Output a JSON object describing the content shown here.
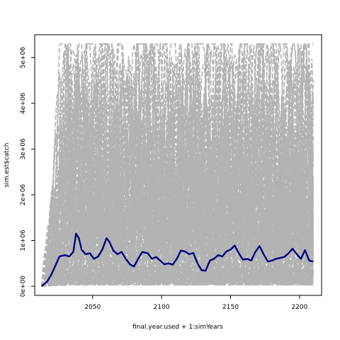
{
  "chart_data": {
    "type": "line",
    "title": "",
    "xlabel": "final.year.used + 1:simYears",
    "ylabel": "sim.est$catch",
    "xlim": [
      2008,
      2216
    ],
    "ylim": [
      -200000,
      5500000
    ],
    "x_ticks": [
      2050,
      2100,
      2150,
      2200
    ],
    "x_tick_labels": [
      "2050",
      "2100",
      "2150",
      "2200"
    ],
    "y_ticks": [
      0,
      1000000,
      2000000,
      3000000,
      4000000,
      5000000
    ],
    "y_tick_labels": [
      "0e+00",
      "1e+06",
      "2e+06",
      "3e+06",
      "4e+06",
      "5e+06"
    ],
    "grid": false,
    "legend": "none",
    "x_start": 2013,
    "x_end": 2210,
    "simulation_series": {
      "color": "#b3b3b3",
      "dash": "dashed",
      "description": "many grey dashed simulation trajectories",
      "count": 120
    },
    "median_series": {
      "color": "#00007f",
      "dash": "solid",
      "x": [
        2013,
        2017,
        2020,
        2023,
        2026,
        2030,
        2033,
        2036,
        2038,
        2040,
        2042,
        2045,
        2048,
        2051,
        2054,
        2057,
        2060,
        2062,
        2065,
        2068,
        2071,
        2074,
        2077,
        2080,
        2083,
        2086,
        2090,
        2093,
        2096,
        2099,
        2102,
        2105,
        2108,
        2111,
        2114,
        2117,
        2120,
        2123,
        2126,
        2129,
        2132,
        2135,
        2138,
        2141,
        2144,
        2147,
        2150,
        2153,
        2156,
        2159,
        2162,
        2165,
        2168,
        2171,
        2174,
        2177,
        2180,
        2183,
        2186,
        2189,
        2192,
        2195,
        2198,
        2201,
        2204,
        2207,
        2210
      ],
      "y": [
        0,
        100000,
        250000,
        450000,
        650000,
        680000,
        650000,
        750000,
        1150000,
        1050000,
        800000,
        700000,
        720000,
        600000,
        650000,
        800000,
        1050000,
        980000,
        780000,
        700000,
        750000,
        600000,
        480000,
        430000,
        600000,
        750000,
        720000,
        600000,
        640000,
        560000,
        480000,
        500000,
        470000,
        600000,
        780000,
        760000,
        700000,
        730000,
        500000,
        350000,
        340000,
        560000,
        600000,
        680000,
        650000,
        760000,
        800000,
        890000,
        720000,
        580000,
        600000,
        560000,
        750000,
        880000,
        700000,
        540000,
        560000,
        600000,
        620000,
        640000,
        720000,
        820000,
        700000,
        600000,
        790000,
        560000,
        540000
      ]
    }
  }
}
